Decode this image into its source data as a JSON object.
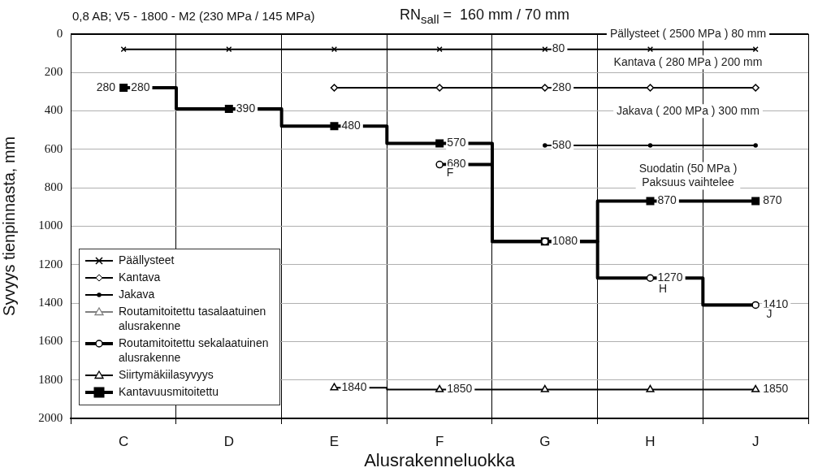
{
  "chart_data": {
    "type": "step",
    "title": "0,8 AB; V5 - 1800 - M2 (230 MPa / 145 MPa)",
    "subtitle": "RN$_{sall}$ =  160 mm / 70 mm",
    "xlabel": "Alusrakenneluokka",
    "ylabel": "Syvyys tienpinnasta, mm",
    "categories": [
      "C",
      "D",
      "E",
      "F",
      "G",
      "H",
      "J"
    ],
    "ylim": [
      2000,
      0
    ],
    "yticks": [
      0,
      200,
      400,
      600,
      800,
      1000,
      1200,
      1400,
      1600,
      1800,
      2000
    ],
    "grid": true,
    "legend": "bottom left",
    "series": [
      {
        "name": "Päällysteet",
        "color": "#000000",
        "marker": "cross",
        "values": [
          80,
          80,
          80,
          80,
          80,
          80,
          80
        ],
        "value_labels": [
          null,
          null,
          null,
          null,
          "80",
          null,
          null
        ]
      },
      {
        "name": "Kantava",
        "color": "#000000",
        "marker": "diamond",
        "values": [
          null,
          null,
          280,
          280,
          280,
          280,
          280
        ],
        "value_labels": [
          null,
          null,
          null,
          null,
          "280",
          null,
          null
        ]
      },
      {
        "name": "Jakava",
        "color": "#000000",
        "marker": "circle",
        "values": [
          null,
          null,
          null,
          null,
          580,
          580,
          580
        ],
        "value_labels": [
          null,
          null,
          null,
          null,
          "580",
          null,
          null
        ]
      },
      {
        "name": "Routamitoitettu tasalaatuinen alusrakenne",
        "color": "#808080",
        "marker": "triangle",
        "values": [
          null,
          null,
          null,
          null,
          null,
          null,
          null
        ]
      },
      {
        "name": "Routamitoitettu sekalaatuinen alusrakenne",
        "color": "#000000",
        "marker": "circle",
        "values": [
          null,
          null,
          null,
          680,
          1080,
          1270,
          1410
        ],
        "value_labels": [
          null,
          null,
          null,
          "680",
          null,
          "1270",
          "1410"
        ]
      },
      {
        "name": "Siirtymäkiilasyvyys",
        "color": "#000000",
        "marker": "triangle",
        "values": [
          null,
          null,
          1840,
          1850,
          1850,
          1850,
          1850
        ],
        "value_labels": [
          null,
          null,
          "1840",
          "1850",
          null,
          null,
          "1850"
        ]
      },
      {
        "name": "Kantavuusmitoitettu",
        "color": "#000000",
        "marker": "square",
        "values": [
          280,
          390,
          480,
          570,
          1080,
          870,
          870
        ],
        "value_labels": [
          "280",
          "390",
          "480",
          "570",
          "1080",
          "870",
          "870"
        ]
      }
    ],
    "annotations": [
      "Pällysteet ( 2500 MPa ) 80 mm",
      "Kantava ( 280 MPa ) 200 mm",
      "Jakava ( 200 MPa ) 300 mm",
      "Suodatin (50 MPa )\nPaksuus vaihtelee",
      {
        "text": "280",
        "x": "C",
        "y": 280
      },
      "F",
      "H",
      "J"
    ]
  }
}
